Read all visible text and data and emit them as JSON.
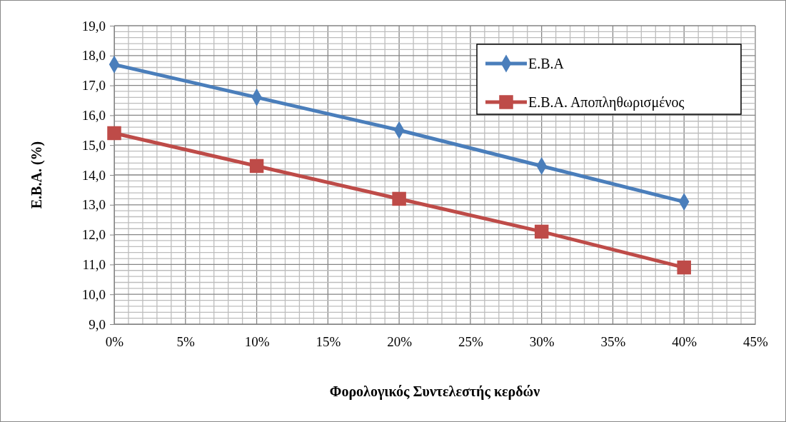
{
  "chart_data": {
    "type": "line",
    "xlabel": "Φορολογικός Συντελεστής κερδών",
    "ylabel": "Ε.Β.Α. (%)",
    "x": [
      0,
      10,
      20,
      30,
      40
    ],
    "series": [
      {
        "name": "Ε.Β.Α",
        "color": "#4a7ebb",
        "marker": "diamond",
        "values": [
          17.7,
          16.6,
          15.5,
          14.3,
          13.1
        ]
      },
      {
        "name": "Ε.Β.Α. Αποπληθωρισμένος",
        "color": "#be4b48",
        "marker": "square",
        "values": [
          15.4,
          14.3,
          13.2,
          12.1,
          10.9
        ]
      }
    ],
    "xlim": [
      0,
      45
    ],
    "xticks": [
      {
        "value": 0,
        "label": "0%"
      },
      {
        "value": 5,
        "label": "5%"
      },
      {
        "value": 10,
        "label": "10%"
      },
      {
        "value": 15,
        "label": "15%"
      },
      {
        "value": 20,
        "label": "20%"
      },
      {
        "value": 25,
        "label": "25%"
      },
      {
        "value": 30,
        "label": "30%"
      },
      {
        "value": 35,
        "label": "35%"
      },
      {
        "value": 40,
        "label": "40%"
      },
      {
        "value": 45,
        "label": "45%"
      }
    ],
    "ylim": [
      9,
      19
    ],
    "yticks": [
      {
        "value": 9,
        "label": "9,0"
      },
      {
        "value": 10,
        "label": "10,0"
      },
      {
        "value": 11,
        "label": "11,0"
      },
      {
        "value": 12,
        "label": "12,0"
      },
      {
        "value": 13,
        "label": "13,0"
      },
      {
        "value": 14,
        "label": "14,0"
      },
      {
        "value": 15,
        "label": "15,0"
      },
      {
        "value": 16,
        "label": "16,0"
      },
      {
        "value": 17,
        "label": "17,0"
      },
      {
        "value": 18,
        "label": "18,0"
      },
      {
        "value": 19,
        "label": "19,0"
      }
    ],
    "grid": true,
    "legend": "top right",
    "line_style": "solid"
  }
}
